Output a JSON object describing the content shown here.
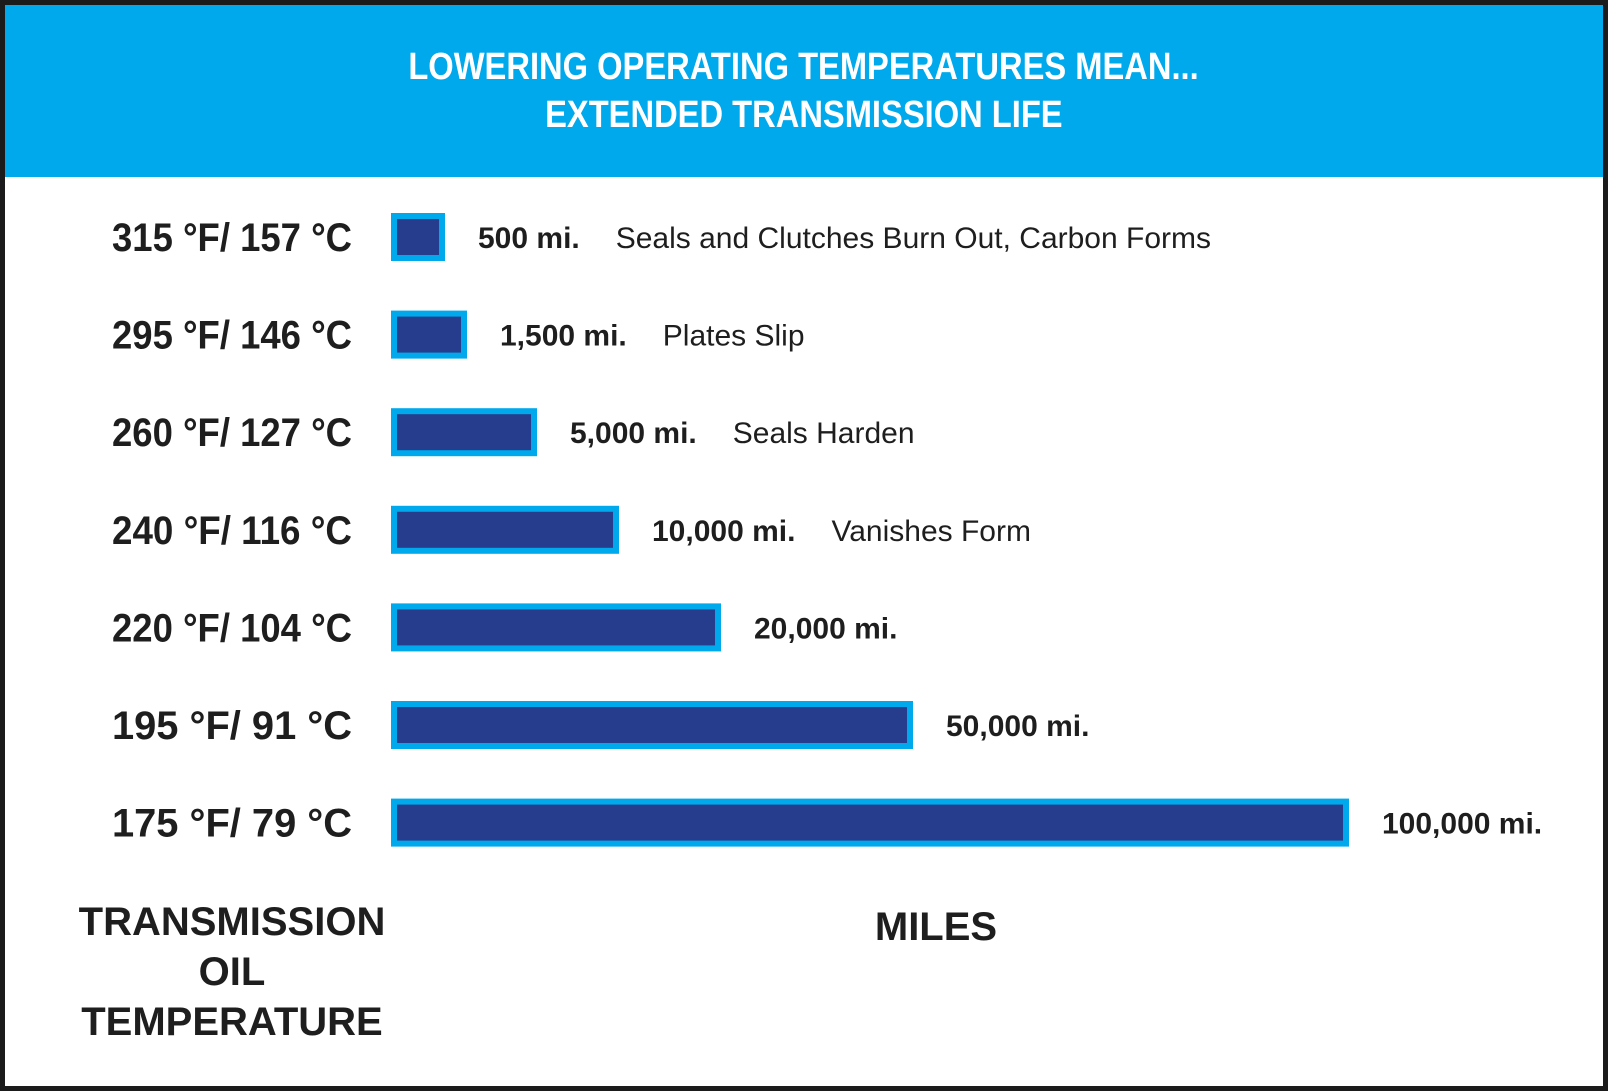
{
  "header": {
    "line1": "LOWERING OPERATING TEMPERATURES MEAN...",
    "line2": "EXTENDED TRANSMISSION LIFE"
  },
  "chart_data": {
    "type": "bar",
    "orientation": "horizontal",
    "categories": [
      "315 °F/ 157 °C",
      "295 °F/ 146 °C",
      "260 °F/ 127 °C",
      "240 °F/ 116 °C",
      "220 °F/ 104 °C",
      "195 °F/ 91 °C",
      "175 °F/ 79 °C"
    ],
    "values": [
      500,
      1500,
      5000,
      10000,
      20000,
      50000,
      100000
    ],
    "value_labels": [
      "500 mi.",
      "1,500 mi.",
      "5,000 mi.",
      "10,000 mi.",
      "20,000 mi.",
      "50,000 mi.",
      "100,000 mi."
    ],
    "annotations": [
      "Seals and Clutches Burn Out, Carbon Forms",
      "Plates Slip",
      "Seals Harden",
      "Vanishes Form",
      "",
      "",
      ""
    ],
    "ylabel": [
      "TRANSMISSION",
      "OIL",
      "TEMPERATURE"
    ],
    "xlabel": "MILES",
    "bar_fill_color": "#253d8c",
    "bar_border_color": "#00a8ec",
    "header_color": "#00a8ec"
  }
}
